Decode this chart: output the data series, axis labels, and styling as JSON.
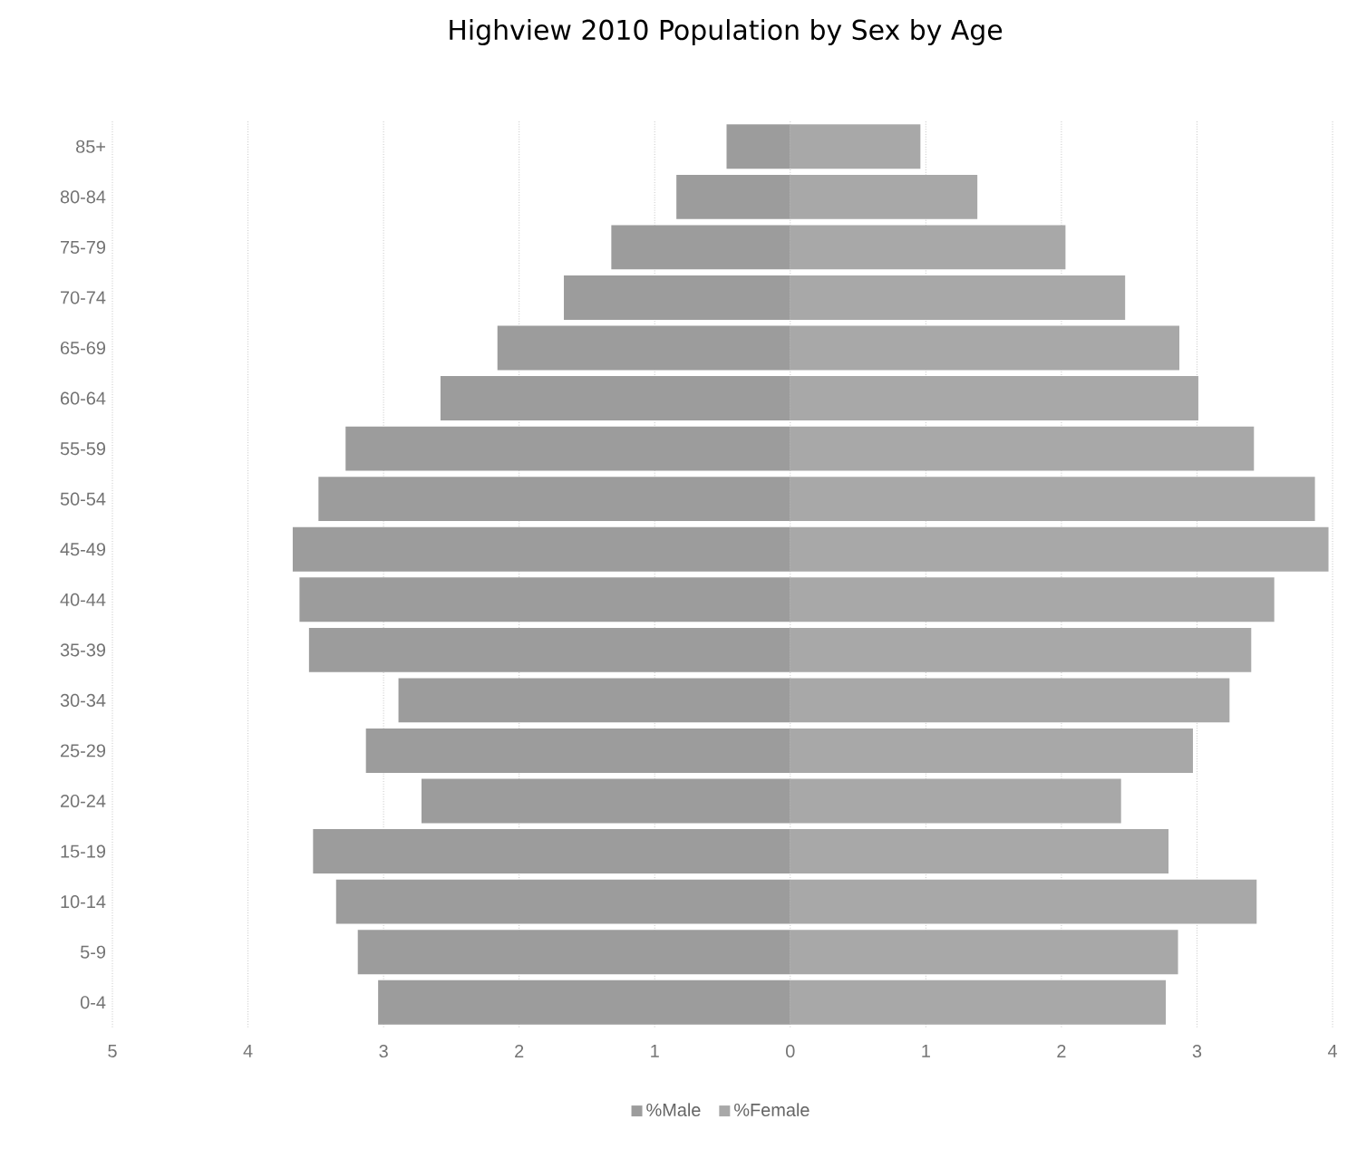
{
  "chart_data": {
    "type": "bar",
    "orientation": "horizontal",
    "title": "Highview 2010 Population by Sex by Age",
    "categories": [
      "85+",
      "80-84",
      "75-79",
      "70-74",
      "65-69",
      "60-64",
      "55-59",
      "50-54",
      "45-49",
      "40-44",
      "35-39",
      "30-34",
      "25-29",
      "20-24",
      "15-19",
      "10-14",
      "5-9",
      "0-4"
    ],
    "series": [
      {
        "name": "%Male",
        "color": "#9c9c9c",
        "values": [
          -0.47,
          -0.84,
          -1.32,
          -1.67,
          -2.16,
          -2.58,
          -3.28,
          -3.48,
          -3.67,
          -3.62,
          -3.55,
          -2.89,
          -3.13,
          -2.72,
          -3.52,
          -3.35,
          -3.19,
          -3.04
        ]
      },
      {
        "name": "%Female",
        "color": "#a8a8a8",
        "values": [
          0.96,
          1.38,
          2.03,
          2.47,
          2.87,
          3.01,
          3.42,
          3.87,
          3.97,
          3.57,
          3.4,
          3.24,
          2.97,
          2.44,
          2.79,
          3.44,
          2.86,
          2.77
        ]
      }
    ],
    "xlim": [
      -5,
      4
    ],
    "xticks": [
      {
        "value": -5,
        "label": "5"
      },
      {
        "value": -4,
        "label": "4"
      },
      {
        "value": -3,
        "label": "3"
      },
      {
        "value": -2,
        "label": "2"
      },
      {
        "value": -1,
        "label": "1"
      },
      0,
      1,
      2,
      3,
      4
    ],
    "grid": "x",
    "legend": "bottom",
    "stacked": true
  }
}
